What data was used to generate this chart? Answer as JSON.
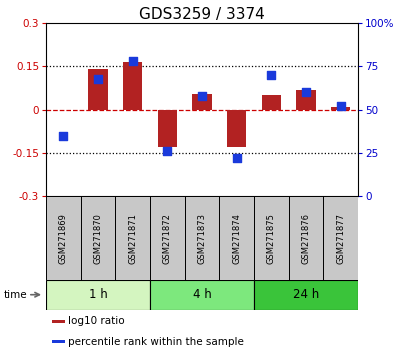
{
  "title": "GDS3259 / 3374",
  "samples": [
    "GSM271869",
    "GSM271870",
    "GSM271871",
    "GSM271872",
    "GSM271873",
    "GSM271874",
    "GSM271875",
    "GSM271876",
    "GSM271877"
  ],
  "log10_ratio": [
    0.0,
    0.14,
    0.165,
    -0.13,
    0.055,
    -0.13,
    0.05,
    0.07,
    0.01
  ],
  "percentile_rank": [
    35,
    68,
    78,
    26,
    58,
    22,
    70,
    60,
    52
  ],
  "ylim_left": [
    -0.3,
    0.3
  ],
  "ylim_right": [
    0,
    100
  ],
  "yticks_left": [
    -0.3,
    -0.15,
    0.0,
    0.15,
    0.3
  ],
  "yticks_right": [
    0,
    25,
    50,
    75,
    100
  ],
  "hline_dotted": [
    -0.15,
    0.15
  ],
  "hline_red": 0.0,
  "bar_color": "#b22222",
  "dot_color": "#1a3adb",
  "dot_size": 28,
  "bar_width": 0.55,
  "time_groups": [
    {
      "label": "1 h",
      "start": 0,
      "end": 3,
      "color": "#d4f5c0"
    },
    {
      "label": "4 h",
      "start": 3,
      "end": 6,
      "color": "#7de87d"
    },
    {
      "label": "24 h",
      "start": 6,
      "end": 9,
      "color": "#3ac43a"
    }
  ],
  "legend_items": [
    {
      "label": "log10 ratio",
      "color": "#b22222"
    },
    {
      "label": "percentile rank within the sample",
      "color": "#1a3adb"
    }
  ],
  "ylabel_left_color": "#cc0000",
  "ylabel_right_color": "#0000cc",
  "sample_box_color": "#c8c8c8",
  "title_fontsize": 11,
  "tick_fontsize": 7.5,
  "sample_fontsize": 6.0,
  "time_fontsize": 8.5,
  "legend_fontsize": 7.5
}
